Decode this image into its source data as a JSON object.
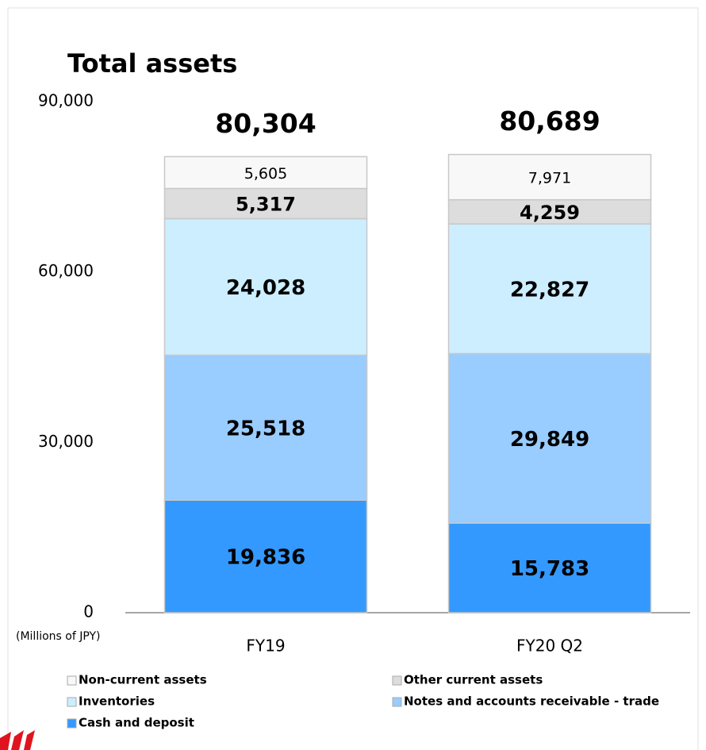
{
  "chart_data": {
    "type": "stacked_bar",
    "title": "Total assets",
    "unit_label": "(Millions of JPY)",
    "categories": [
      "FY19",
      "FY20 Q2"
    ],
    "series": [
      {
        "name": "Cash and deposit",
        "color": "#3399ff",
        "values": [
          19836,
          15783
        ],
        "value_labels": [
          "19,836",
          "15,783"
        ]
      },
      {
        "name": "Notes and accounts receivable - trade",
        "color": "#99ccff",
        "values": [
          25518,
          29849
        ],
        "value_labels": [
          "25,518",
          "29,849"
        ]
      },
      {
        "name": "Inventories",
        "color": "#cceeff",
        "values": [
          24028,
          22827
        ],
        "value_labels": [
          "24,028",
          "22,827"
        ]
      },
      {
        "name": "Other current assets",
        "color": "#dddddd",
        "values": [
          5317,
          4259
        ],
        "value_labels": [
          "5,317",
          "4,259"
        ]
      },
      {
        "name": "Non-current assets",
        "color": "#f8f8f8",
        "values": [
          5605,
          7971
        ],
        "value_labels": [
          "5,605",
          "7,971"
        ]
      }
    ],
    "totals": [
      80304,
      80689
    ],
    "total_labels": [
      "80,304",
      "80,689"
    ],
    "ylim": [
      0,
      90000
    ],
    "yticks": [
      0,
      {
        "value": 30000,
        "label": "30,000"
      },
      {
        "value": 60000,
        "label": "60,000"
      },
      {
        "value": 90000,
        "label": "90,000"
      }
    ],
    "grid": false,
    "legend": "bottom"
  }
}
